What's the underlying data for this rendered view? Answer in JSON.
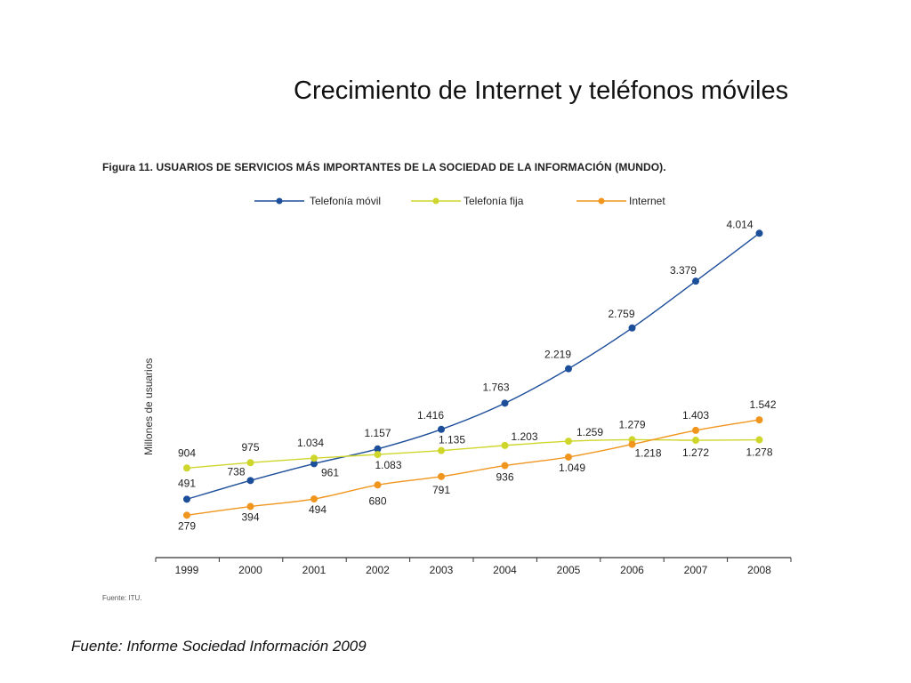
{
  "slide": {
    "title": "Crecimiento de Internet y teléfonos móviles",
    "footer": "Fuente: Informe Sociedad Información 2009"
  },
  "chart_data": {
    "type": "line",
    "title": "Figura 11. USUARIOS DE SERVICIOS MÁS IMPORTANTES DE LA SOCIEDAD DE LA INFORMACIÓN (MUNDO).",
    "xlabel": "",
    "ylabel": "Millones de usuarios",
    "categories": [
      "1999",
      "2000",
      "2001",
      "2002",
      "2003",
      "2004",
      "2005",
      "2006",
      "2007",
      "2008"
    ],
    "ylim": [
      0,
      4300
    ],
    "grid": false,
    "legend_position": "top",
    "source": "Fuente: ITU.",
    "series": [
      {
        "name": "Telefonía móvil",
        "color": "#1d4e9a",
        "values": [
          491,
          738,
          961,
          1157,
          1416,
          1763,
          2219,
          2759,
          3379,
          4014
        ],
        "labels": [
          "491",
          "738",
          "961",
          "1.157",
          "1.416",
          "1.763",
          "2.219",
          "2.759",
          "3.379",
          "4.014"
        ]
      },
      {
        "name": "Telefonía fija",
        "color": "#cfd62b",
        "values": [
          904,
          975,
          1034,
          1083,
          1135,
          1203,
          1259,
          1279,
          1272,
          1278
        ],
        "labels": [
          "904",
          "975",
          "1.034",
          "1.083",
          "1.135",
          "1.203",
          "1.259",
          "1.279",
          "1.272",
          "1.278"
        ]
      },
      {
        "name": "Internet",
        "color": "#f0961e",
        "values": [
          279,
          394,
          494,
          680,
          791,
          936,
          1049,
          1218,
          1403,
          1542
        ],
        "labels": [
          "279",
          "394",
          "494",
          "680",
          "791",
          "936",
          "1.049",
          "1.218",
          "1.403",
          "1.542"
        ]
      }
    ]
  }
}
